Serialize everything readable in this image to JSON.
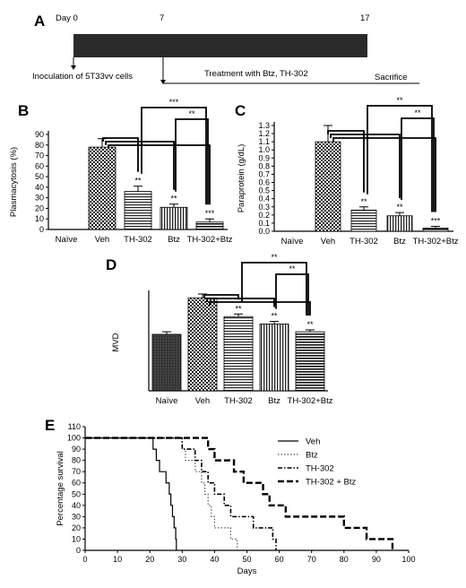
{
  "timeline": {
    "panel": "A",
    "day0": "Day 0",
    "day7": "7",
    "day17": "17",
    "inoculation": "Inoculation of 5T33vv cells",
    "treatment": "Treatment with Btz, TH-302",
    "sacrifice": "Sacrifice"
  },
  "chart_data": [
    {
      "panel": "B",
      "type": "bar",
      "ylabel": "Plasmacytosis (%)",
      "ylim": [
        0,
        90
      ],
      "yticks": [
        0,
        10,
        20,
        30,
        40,
        50,
        60,
        70,
        80,
        90
      ],
      "categories": [
        "Naïve",
        "Veh",
        "TH-302",
        "Btz",
        "TH-302+Btz"
      ],
      "values": [
        0,
        78,
        36,
        21,
        7
      ],
      "errors": [
        0,
        8,
        5,
        3,
        3
      ],
      "stars": [
        "",
        "",
        "**",
        "**",
        "***"
      ],
      "brackets": [
        {
          "from": 1,
          "to": 2,
          "label": ""
        },
        {
          "from": 1,
          "to": 3,
          "label": ""
        },
        {
          "from": 1,
          "to": 4,
          "label": ""
        },
        {
          "from": 3,
          "to": 4,
          "label": "**"
        },
        {
          "from": 2,
          "to": 4,
          "label": "***"
        }
      ]
    },
    {
      "panel": "C",
      "type": "bar",
      "ylabel": "Paraprotein (g/dL)",
      "ylim": [
        0,
        1.3
      ],
      "yticks": [
        "0.0",
        "0.1",
        "0.2",
        "0.3",
        "0.4",
        "0.5",
        "0.6",
        "0.7",
        "0.8",
        "0.9",
        "1.0",
        "1.1",
        "1.2",
        "1.3"
      ],
      "categories": [
        "Naïve",
        "Veh",
        "TH-302",
        "Btz",
        "TH-302+Btz"
      ],
      "values": [
        0,
        1.1,
        0.26,
        0.19,
        0.04
      ],
      "errors": [
        0,
        0.2,
        0.04,
        0.04,
        0.02
      ],
      "stars": [
        "",
        "",
        "**",
        "**",
        "***"
      ],
      "brackets": [
        {
          "from": 1,
          "to": 2,
          "label": ""
        },
        {
          "from": 1,
          "to": 3,
          "label": ""
        },
        {
          "from": 1,
          "to": 4,
          "label": ""
        },
        {
          "from": 3,
          "to": 4,
          "label": "**"
        },
        {
          "from": 2,
          "to": 4,
          "label": "**"
        }
      ]
    },
    {
      "panel": "D",
      "type": "bar",
      "ylabel": "MVD",
      "ylim": [
        0,
        30
      ],
      "yticks": [],
      "categories": [
        "Naïve",
        "Veh",
        "TH-302",
        "Btz",
        "TH-302+Btz"
      ],
      "values": [
        17.5,
        28.8,
        23,
        20.7,
        18.3
      ],
      "errors": [
        0.8,
        1.2,
        0.8,
        0.8,
        0.6
      ],
      "stars": [
        "",
        "",
        "**",
        "**",
        "**"
      ],
      "brackets": [
        {
          "from": 1,
          "to": 2,
          "label": ""
        },
        {
          "from": 1,
          "to": 3,
          "label": ""
        },
        {
          "from": 1,
          "to": 4,
          "label": ""
        },
        {
          "from": 3,
          "to": 4,
          "label": "**"
        },
        {
          "from": 2,
          "to": 4,
          "label": "**"
        }
      ]
    },
    {
      "panel": "E",
      "type": "line",
      "xlabel": "Days",
      "ylabel": "Percentage survival",
      "xlim": [
        0,
        100
      ],
      "ylim": [
        0,
        110
      ],
      "xticks": [
        0,
        10,
        20,
        30,
        40,
        50,
        60,
        70,
        80,
        90,
        100
      ],
      "yticks": [
        0,
        10,
        20,
        30,
        40,
        50,
        60,
        70,
        80,
        90,
        100,
        110
      ],
      "legend_position": "top-right",
      "series": [
        {
          "name": "Veh",
          "style": "solid",
          "steps": [
            [
              0,
              100
            ],
            [
              20,
              100
            ],
            [
              21,
              90
            ],
            [
              22,
              80
            ],
            [
              23,
              70
            ],
            [
              25,
              60
            ],
            [
              26,
              50
            ],
            [
              26.5,
              40
            ],
            [
              27,
              30
            ],
            [
              27.5,
              20
            ],
            [
              28,
              10
            ],
            [
              28.2,
              0
            ]
          ]
        },
        {
          "name": "Btz",
          "style": "dotted",
          "steps": [
            [
              0,
              100
            ],
            [
              29,
              100
            ],
            [
              30,
              90
            ],
            [
              31,
              80
            ],
            [
              34,
              70
            ],
            [
              36,
              60
            ],
            [
              37,
              50
            ],
            [
              38,
              40
            ],
            [
              39,
              30
            ],
            [
              40,
              20
            ],
            [
              45,
              10
            ],
            [
              47,
              0
            ]
          ]
        },
        {
          "name": "TH-302",
          "style": "dashdot",
          "steps": [
            [
              0,
              100
            ],
            [
              28,
              100
            ],
            [
              30,
              90
            ],
            [
              34,
              80
            ],
            [
              36,
              70
            ],
            [
              38,
              60
            ],
            [
              40,
              50
            ],
            [
              43,
              40
            ],
            [
              45,
              30
            ],
            [
              52,
              20
            ],
            [
              58,
              10
            ],
            [
              59,
              0
            ]
          ]
        },
        {
          "name": "TH-302 + Btz",
          "style": "dashed",
          "steps": [
            [
              0,
              100
            ],
            [
              35,
              100
            ],
            [
              38,
              90
            ],
            [
              40,
              80
            ],
            [
              46,
              70
            ],
            [
              49,
              60
            ],
            [
              55,
              50
            ],
            [
              57,
              40
            ],
            [
              62,
              30
            ],
            [
              80,
              20
            ],
            [
              87,
              10
            ],
            [
              95,
              0
            ]
          ]
        }
      ]
    }
  ]
}
